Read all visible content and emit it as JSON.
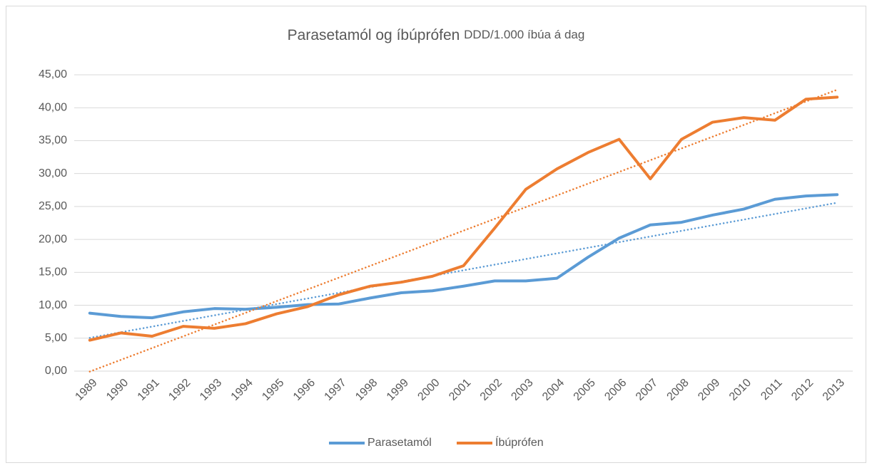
{
  "chart_data": {
    "type": "line",
    "title": "Parasetamól og íbúprófen",
    "subtitle": "DDD/1.000 íbúa á dag",
    "categories": [
      "1989",
      "1990",
      "1991",
      "1992",
      "1993",
      "1994",
      "1995",
      "1996",
      "1997",
      "1998",
      "1999",
      "2000",
      "2001",
      "2002",
      "2003",
      "2004",
      "2005",
      "2006",
      "2007",
      "2008",
      "2009",
      "2010",
      "2011",
      "2012",
      "2013"
    ],
    "series": [
      {
        "name": "Parasetamól",
        "color": "#5b9bd5",
        "values": [
          8.8,
          8.3,
          8.1,
          9.0,
          9.5,
          9.4,
          9.7,
          10.1,
          10.2,
          11.1,
          11.9,
          12.2,
          12.9,
          13.7,
          13.7,
          14.1,
          17.3,
          20.2,
          22.2,
          22.6,
          23.7,
          24.6,
          26.1,
          26.6,
          26.8
        ]
      },
      {
        "name": "Íbúprófen",
        "color": "#ed7d31",
        "values": [
          4.7,
          5.8,
          5.3,
          6.8,
          6.5,
          7.2,
          8.7,
          9.8,
          11.6,
          12.9,
          13.5,
          14.4,
          16.0,
          21.7,
          27.6,
          30.7,
          33.2,
          35.2,
          29.2,
          35.2,
          37.8,
          38.5,
          38.1,
          41.3,
          41.6
        ]
      }
    ],
    "trendline": "linear",
    "ylim": [
      0,
      45
    ],
    "yticks": [
      {
        "value": 0,
        "label": "0,00"
      },
      {
        "value": 5,
        "label": "5,00"
      },
      {
        "value": 10,
        "label": "10,00"
      },
      {
        "value": 15,
        "label": "15,00"
      },
      {
        "value": 20,
        "label": "20,00"
      },
      {
        "value": 25,
        "label": "25,00"
      },
      {
        "value": 30,
        "label": "30,00"
      },
      {
        "value": 35,
        "label": "35,00"
      },
      {
        "value": 40,
        "label": "40,00"
      },
      {
        "value": 45,
        "label": "45,00"
      }
    ],
    "grid": true,
    "legend": "bottom"
  }
}
